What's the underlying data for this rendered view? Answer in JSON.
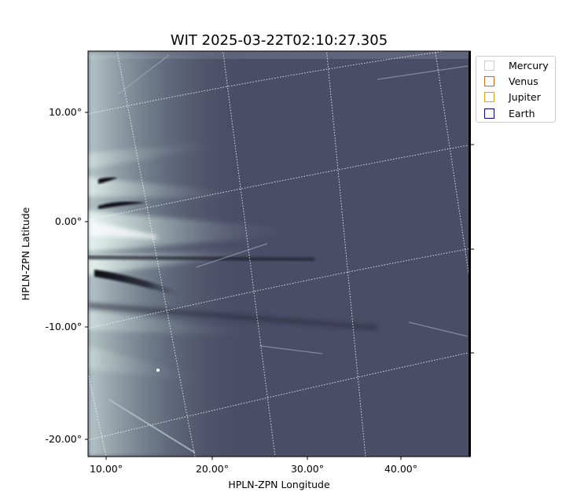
{
  "title": "WIT 2025-03-22T02:10:27.305",
  "xlabel": "HPLN-ZPN Longitude",
  "ylabel": "HPLN-ZPN Latitude",
  "x_ticks": [
    "10.00°",
    "20.00°",
    "30.00°",
    "40.00°"
  ],
  "y_ticks": [
    "10.00°",
    "0.00°",
    "-10.00°",
    "-20.00°"
  ],
  "legend": [
    {
      "label": "Mercury",
      "color": "#cccccc"
    },
    {
      "label": "Venus",
      "color": "#d2691e"
    },
    {
      "label": "Jupiter",
      "color": "#e0a010"
    },
    {
      "label": "Earth",
      "color": "#000080"
    }
  ],
  "colors": {
    "background": "#4a4d66",
    "streamer": "#cfe0dc",
    "dark_band": "#101018",
    "grid": "#ffffff"
  }
}
